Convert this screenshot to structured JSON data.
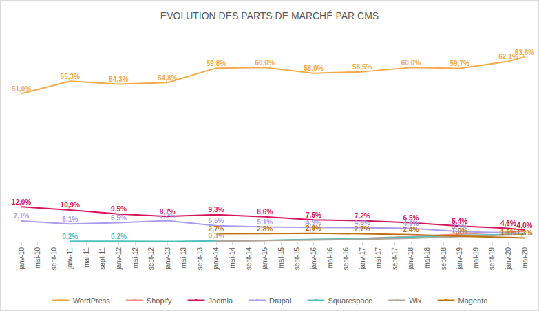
{
  "chart_data": {
    "type": "line",
    "title": "EVOLUTION DES PARTS DE MARCHÉ PAR CMS",
    "categories": [
      "janv-10",
      "mai-10",
      "sept-10",
      "janv-11",
      "mai-11",
      "sept-11",
      "janv-12",
      "mai-12",
      "sept-12",
      "janv-13",
      "mai-13",
      "sept-13",
      "janv-14",
      "mai-14",
      "sept-14",
      "janv-15",
      "mai-15",
      "sept-15",
      "janv-16",
      "mai-16",
      "sept-16",
      "janv-17",
      "mai-17",
      "sept-17",
      "janv-18",
      "mai-18",
      "sept-18",
      "janv-19",
      "mai-19",
      "sept-19",
      "janv-20",
      "mai-20"
    ],
    "ylim": [
      0,
      70
    ],
    "yticks": [
      0,
      70
    ],
    "grid": false,
    "legend": "bottom",
    "tick_labels": "x",
    "data_labels": true,
    "series": [
      {
        "name": "WordPress",
        "color": "#f5a947",
        "values": [
          51.0,
          null,
          null,
          55.3,
          null,
          null,
          54.3,
          null,
          null,
          54.8,
          null,
          null,
          59.8,
          null,
          null,
          60.0,
          null,
          null,
          58.0,
          null,
          null,
          58.5,
          null,
          null,
          60.0,
          null,
          null,
          59.7,
          null,
          null,
          62.1,
          63.6
        ],
        "value_labels": [
          "51,0%",
          null,
          null,
          "55,3%",
          null,
          null,
          "54,3%",
          null,
          null,
          "54,8%",
          null,
          null,
          "59,8%",
          null,
          null,
          "60,0%",
          null,
          null,
          "58,0%",
          null,
          null,
          "58,5%",
          null,
          null,
          "60,0%",
          null,
          null,
          "59,7%",
          null,
          null,
          "62,1%",
          "63,6%"
        ]
      },
      {
        "name": "Shopify",
        "color": "#f08c7e",
        "values": [
          null,
          null,
          null,
          null,
          null,
          null,
          null,
          null,
          null,
          null,
          null,
          null,
          0.2,
          null,
          null,
          0.4,
          null,
          null,
          0.7,
          null,
          null,
          1.1,
          null,
          null,
          1.8,
          null,
          null,
          2.6,
          null,
          null,
          3.3,
          3.6
        ],
        "value_labels": [
          null,
          null,
          null,
          null,
          null,
          null,
          null,
          null,
          null,
          null,
          null,
          null,
          null,
          null,
          null,
          null,
          null,
          null,
          null,
          null,
          null,
          null,
          null,
          null,
          null,
          null,
          null,
          null,
          null,
          null,
          null,
          null
        ]
      },
      {
        "name": "Joomla",
        "color": "#d6145a",
        "values": [
          12.0,
          null,
          null,
          10.9,
          null,
          null,
          9.5,
          null,
          null,
          8.7,
          null,
          null,
          9.3,
          null,
          null,
          8.6,
          null,
          null,
          7.5,
          null,
          null,
          7.2,
          null,
          null,
          6.5,
          null,
          null,
          5.4,
          null,
          null,
          4.6,
          4.0
        ],
        "value_labels": [
          "12,0%",
          null,
          null,
          "10,9%",
          null,
          null,
          "9,5%",
          null,
          null,
          "8,7%",
          null,
          null,
          "9,3%",
          null,
          null,
          "8,6%",
          null,
          null,
          "7,5%",
          null,
          null,
          "7,2%",
          null,
          null,
          "6,5%",
          null,
          null,
          "5,4%",
          null,
          null,
          "4,6%",
          "4,0%"
        ]
      },
      {
        "name": "Drupal",
        "color": "#a99cf0",
        "values": [
          7.1,
          null,
          null,
          6.1,
          null,
          null,
          6.5,
          null,
          null,
          7.2,
          null,
          null,
          5.5,
          null,
          null,
          5.1,
          null,
          null,
          4.9,
          null,
          null,
          4.8,
          null,
          null,
          4.6,
          null,
          null,
          3.5,
          null,
          null,
          3.0,
          2.9
        ],
        "value_labels": [
          "7,1%",
          null,
          null,
          "6,1%",
          null,
          null,
          "6,5%",
          null,
          null,
          "7,2%",
          null,
          null,
          "5,5%",
          null,
          null,
          "5,1%",
          null,
          null,
          "4,9%",
          null,
          null,
          "4,8%",
          null,
          null,
          "4,6%",
          null,
          null,
          "3,5%",
          null,
          null,
          null,
          null
        ]
      },
      {
        "name": "Squarespace",
        "color": "#4fc1bf",
        "values": [
          null,
          null,
          null,
          0.2,
          null,
          null,
          0.2,
          null,
          null,
          0.1,
          null,
          null,
          0.3,
          null,
          null,
          0.5,
          null,
          null,
          0.8,
          null,
          null,
          1.1,
          null,
          null,
          1.6,
          null,
          null,
          2.2,
          null,
          null,
          2.5,
          2.6
        ],
        "value_labels": [
          null,
          null,
          null,
          "0,2%",
          null,
          null,
          "0,2%",
          null,
          null,
          null,
          null,
          null,
          null,
          null,
          null,
          null,
          null,
          null,
          null,
          null,
          null,
          null,
          null,
          null,
          null,
          null,
          null,
          null,
          null,
          null,
          null,
          null
        ]
      },
      {
        "name": "Wix",
        "color": "#b0a79a",
        "values": [
          null,
          null,
          null,
          null,
          null,
          null,
          null,
          null,
          null,
          null,
          null,
          null,
          0.3,
          null,
          null,
          0.4,
          null,
          null,
          0.6,
          null,
          null,
          0.8,
          null,
          null,
          1.2,
          null,
          null,
          1.8,
          null,
          null,
          2.3,
          2.4
        ],
        "value_labels": [
          null,
          null,
          null,
          null,
          null,
          null,
          null,
          null,
          null,
          null,
          null,
          null,
          "0,3%",
          null,
          null,
          null,
          null,
          null,
          null,
          null,
          null,
          null,
          null,
          null,
          null,
          null,
          null,
          null,
          null,
          null,
          null,
          null
        ]
      },
      {
        "name": "Magento",
        "color": "#c0720a",
        "values": [
          null,
          null,
          null,
          null,
          null,
          null,
          null,
          null,
          null,
          null,
          null,
          null,
          2.7,
          null,
          null,
          2.8,
          null,
          null,
          2.9,
          null,
          null,
          2.7,
          null,
          null,
          2.4,
          null,
          null,
          1.9,
          null,
          null,
          1.5,
          1.3
        ],
        "value_labels": [
          null,
          null,
          null,
          null,
          null,
          null,
          null,
          null,
          null,
          null,
          null,
          null,
          "2,7%",
          null,
          null,
          "2,8%",
          null,
          null,
          "2,9%",
          null,
          null,
          "2,7%",
          null,
          null,
          "2,4%",
          null,
          null,
          "1,9%",
          null,
          null,
          "1,5%",
          "1,3%"
        ]
      }
    ]
  }
}
